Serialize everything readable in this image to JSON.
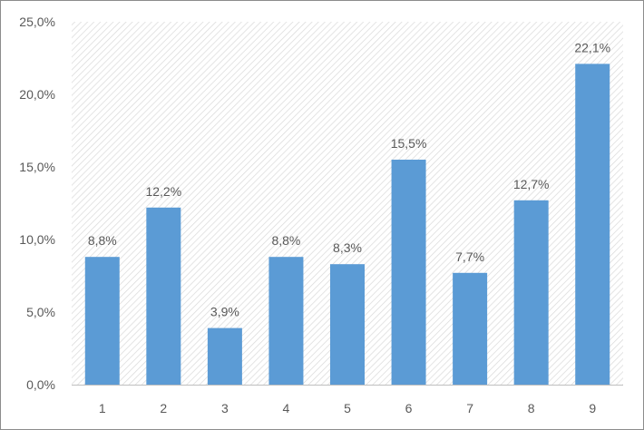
{
  "chart_data": {
    "type": "bar",
    "title": "",
    "xlabel": "",
    "ylabel": "",
    "categories": [
      "1",
      "2",
      "3",
      "4",
      "5",
      "6",
      "7",
      "8",
      "9"
    ],
    "values": [
      8.8,
      12.2,
      3.9,
      8.8,
      8.3,
      15.5,
      7.7,
      12.7,
      22.1
    ],
    "value_labels": [
      "8,8%",
      "12,2%",
      "3,9%",
      "8,8%",
      "8,3%",
      "15,5%",
      "7,7%",
      "12,7%",
      "22,1%"
    ],
    "ylim": [
      0,
      25
    ],
    "y_ticks": [
      0,
      5,
      10,
      15,
      20,
      25
    ],
    "y_tick_labels": [
      "0,0%",
      "5,0%",
      "10,0%",
      "15,0%",
      "20,0%",
      "25,0%"
    ],
    "grid": false,
    "legend": "none",
    "plot_background": "diagonal-hatch",
    "colors": {
      "bar": "#5b9bd5",
      "text": "#595959",
      "hatch": "#d9d9d9",
      "border": "#8c8c8c"
    }
  }
}
